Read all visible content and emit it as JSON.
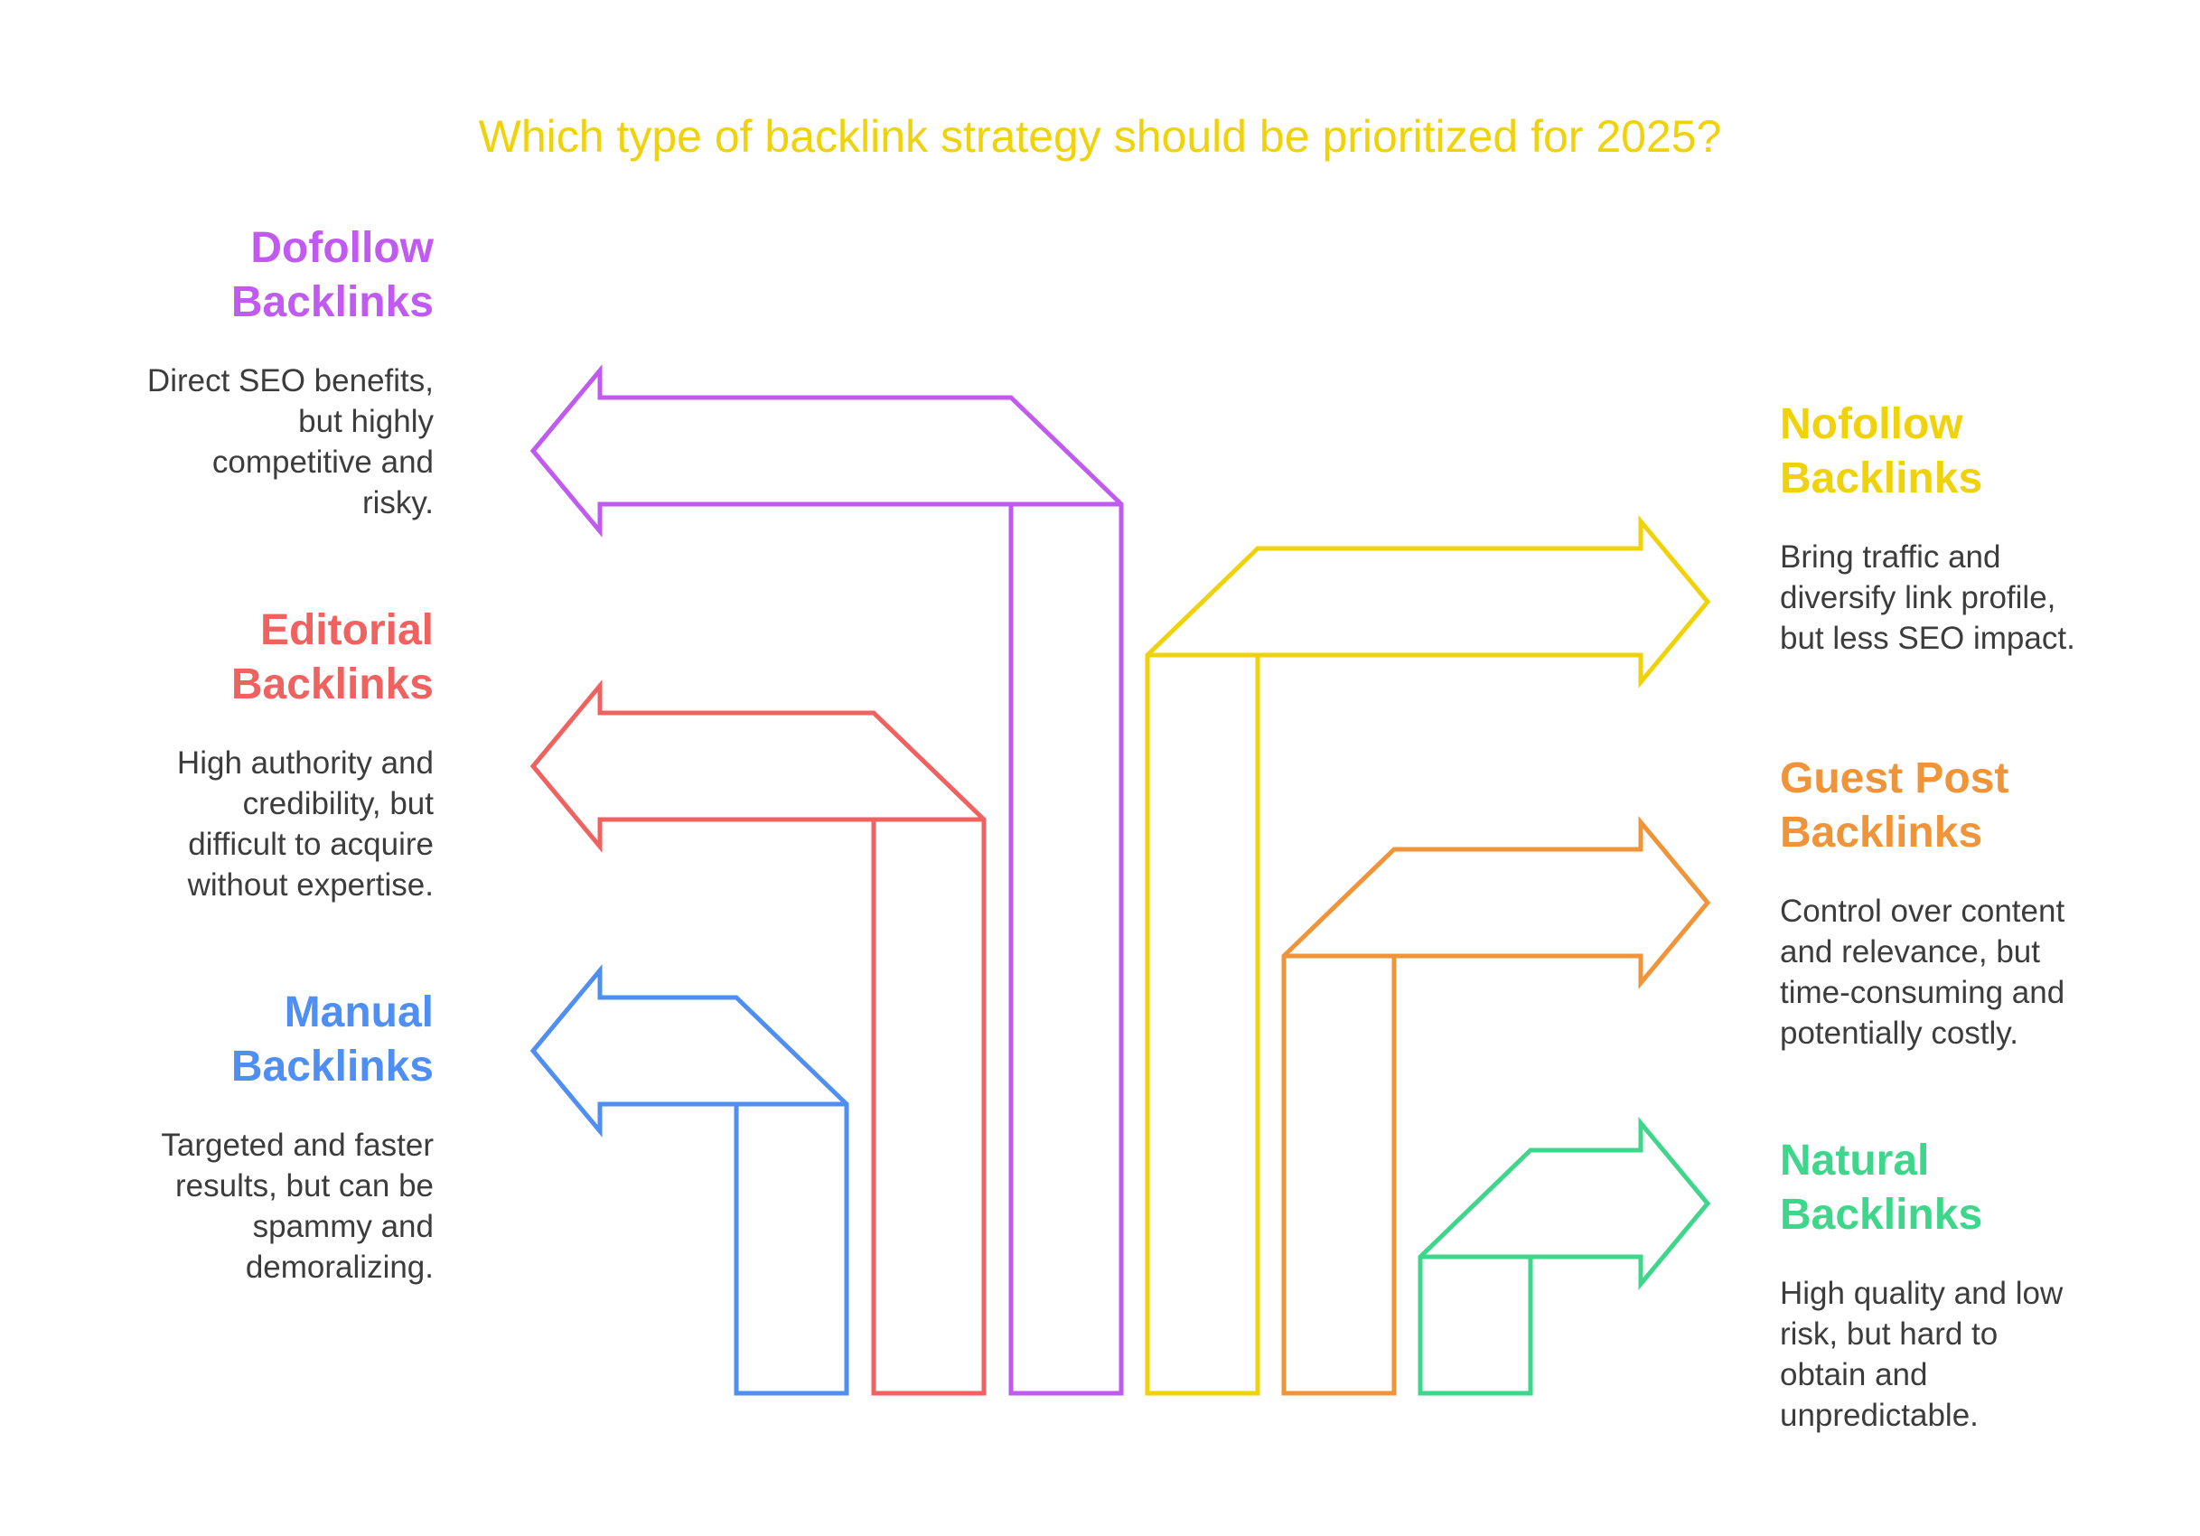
{
  "title": "Which type of backlink strategy should be prioritized for 2025?",
  "strategies": [
    {
      "heading_line1": "Dofollow",
      "heading_line2": "Backlinks",
      "description_lines": [
        "Direct SEO benefits,",
        "but highly",
        "competitive and",
        "risky."
      ],
      "color": "#c05af0",
      "side": "left"
    },
    {
      "heading_line1": "Editorial",
      "heading_line2": "Backlinks",
      "description_lines": [
        "High authority and",
        "credibility, but",
        "difficult to acquire",
        "without expertise."
      ],
      "color": "#f06260",
      "side": "left"
    },
    {
      "heading_line1": "Manual",
      "heading_line2": "Backlinks",
      "description_lines": [
        "Targeted and faster",
        "results, but can be",
        "spammy and",
        "demoralizing."
      ],
      "color": "#4f8ef2",
      "side": "left"
    },
    {
      "heading_line1": "Nofollow",
      "heading_line2": "Backlinks",
      "description_lines": [
        "Bring traffic and",
        "diversify link profile,",
        "but less SEO impact."
      ],
      "color": "#f0d20a",
      "side": "right"
    },
    {
      "heading_line1": "Guest Post",
      "heading_line2": "Backlinks",
      "description_lines": [
        "Control over content",
        "and relevance, but",
        "time-consuming and",
        "potentially costly."
      ],
      "color": "#f0943a",
      "side": "right"
    },
    {
      "heading_line1": "Natural",
      "heading_line2": "Backlinks",
      "description_lines": [
        "High quality and low",
        "risk, but hard to",
        "obtain and",
        "unpredictable."
      ],
      "color": "#3ed68a",
      "side": "right"
    }
  ]
}
